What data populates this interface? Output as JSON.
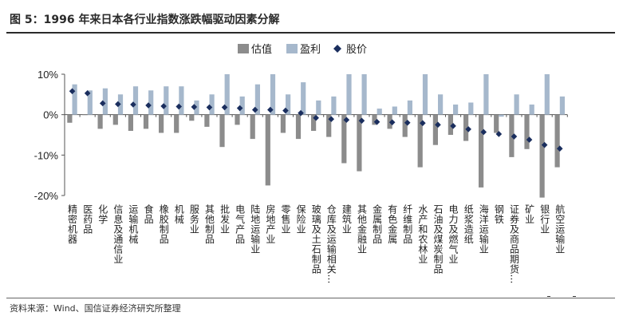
{
  "title": "图 5：1996 年来日本各行业指数涨跌幅驱动因素分解",
  "source": "资料来源：Wind、国信证券经济研究所整理",
  "colors": {
    "valuation": "#8c8c8c",
    "earnings": "#a6b8cc",
    "price": "#1a2e5e",
    "axis": "#555555",
    "text": "#222222"
  },
  "chart_data": {
    "type": "bar",
    "categories": [
      "精密机器",
      "医药品",
      "化学",
      "信息及通信业",
      "运输机械",
      "食品",
      "橡胶制品",
      "机械",
      "服务业",
      "其他制品",
      "批发业",
      "电气产品",
      "陆地运输业",
      "房地产业",
      "零售业",
      "保险业",
      "玻璃及土石制品",
      "仓库及运输相关…",
      "建筑业",
      "其他金融业",
      "金属制品",
      "有色金属",
      "纤维制品",
      "水产和农林业",
      "石油及煤炭制品",
      "电力及燃气业",
      "纸浆造纸",
      "海洋运输业",
      "钢铁",
      "证券及商品期货…",
      "矿业",
      "银行业",
      "航空运输业"
    ],
    "series": [
      {
        "name": "估值",
        "type": "bar",
        "values": [
          -2,
          0,
          -3.5,
          -2.5,
          -4,
          -3.5,
          -4.5,
          -4.5,
          -1.5,
          -3,
          -8,
          -2.5,
          -6,
          -17.5,
          -4.5,
          -6,
          -4,
          -5.5,
          -12,
          -14,
          -2.5,
          -3.5,
          -5.5,
          -13,
          -7.5,
          -5,
          -6.5,
          -18,
          -4.5,
          -10.5,
          -8.5,
          -20.5,
          -13
        ]
      },
      {
        "name": "盈利",
        "type": "bar",
        "values": [
          7.5,
          6,
          6.5,
          5,
          7,
          6,
          7,
          7,
          3.5,
          5,
          10,
          4.5,
          7.5,
          10,
          5,
          8,
          3.5,
          4.5,
          10,
          10,
          1.5,
          2,
          3.5,
          10,
          5,
          2.5,
          3,
          10,
          -0.5,
          5,
          2.5,
          10,
          4.5
        ]
      },
      {
        "name": "股价",
        "type": "marker",
        "values": [
          5.8,
          5.3,
          2.8,
          2.6,
          2.5,
          2.3,
          2.1,
          2,
          1.9,
          1.8,
          1.8,
          1.6,
          1.2,
          1.2,
          1,
          0.4,
          -0.8,
          -1.1,
          -1.3,
          -1.5,
          -1.8,
          -1.9,
          -2,
          -2.1,
          -2.5,
          -2.8,
          -3.6,
          -4.3,
          -4.8,
          -5.4,
          -6.2,
          -7.5,
          -8.4
        ]
      }
    ],
    "ylim": [
      -20,
      10
    ],
    "yticks": [
      10,
      0,
      -10,
      -20
    ],
    "ytick_labels": [
      "10%",
      "0%",
      "-10%",
      "-20%"
    ],
    "ylabel": "",
    "xlabel": "",
    "legend": {
      "position": "top-center",
      "entries": [
        "估值",
        "盈利",
        "股价"
      ]
    },
    "grid": false
  }
}
